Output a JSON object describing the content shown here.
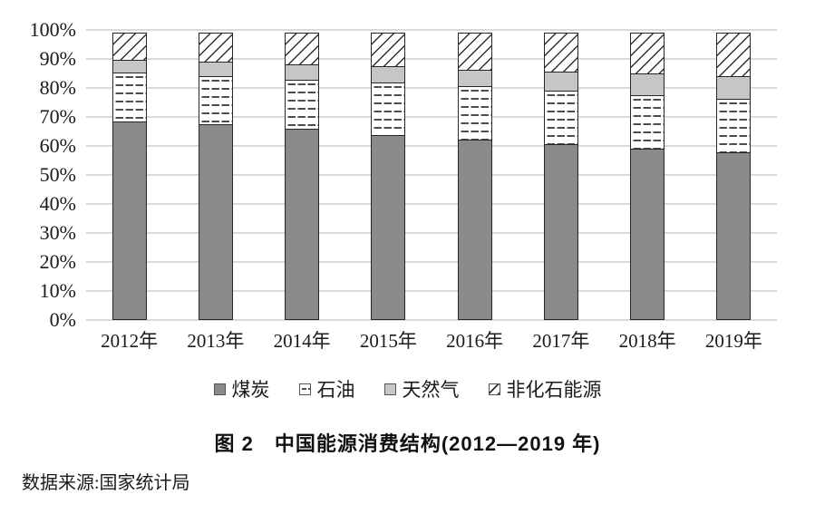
{
  "chart_data": {
    "type": "bar",
    "subtype": "stacked-percent-column",
    "categories": [
      "2012年",
      "2013年",
      "2014年",
      "2015年",
      "2016年",
      "2017年",
      "2018年",
      "2019年"
    ],
    "series": [
      {
        "id": "coal",
        "name": "煤炭",
        "fill": "#8a8a8a",
        "pattern": "solid",
        "values": [
          68.5,
          67.4,
          65.8,
          63.8,
          62.2,
          60.6,
          59.0,
          57.7
        ]
      },
      {
        "id": "oil",
        "name": "石油",
        "fill": "#ffffff",
        "pattern": "dashes",
        "values": [
          17.0,
          17.1,
          17.3,
          18.4,
          18.7,
          18.9,
          18.9,
          19.0
        ]
      },
      {
        "id": "gas",
        "name": "天然气",
        "fill": "#c6c6c6",
        "pattern": "solid",
        "values": [
          4.8,
          5.3,
          5.6,
          5.8,
          6.1,
          6.9,
          7.6,
          7.9
        ]
      },
      {
        "id": "nonfossil",
        "name": "非化石能源",
        "fill": "#ffffff",
        "pattern": "diagonal-hatch",
        "values": [
          9.7,
          10.2,
          11.3,
          12.0,
          13.0,
          13.6,
          14.5,
          15.4
        ]
      }
    ],
    "ylim": [
      0,
      100
    ],
    "yticks": [
      "100%",
      "90%",
      "80%",
      "70%",
      "60%",
      "50%",
      "40%",
      "30%",
      "20%",
      "10%",
      "0%"
    ],
    "ylabel": "",
    "xlabel": "",
    "grid": "horizontal",
    "legend_position": "bottom",
    "title": "中国能源消费结构(2012—2019 年)"
  },
  "caption": {
    "text": "图 2　中国能源消费结构(2012—2019 年)"
  },
  "source": {
    "text": "数据来源:国家统计局"
  },
  "colors": {
    "coal_fill": "#8a8a8a",
    "gas_fill": "#c6c6c6",
    "pattern_stroke": "#303030",
    "segment_border": "#262626",
    "gridline": "#dadada",
    "text": "#1a1a1a",
    "background": "#ffffff"
  }
}
